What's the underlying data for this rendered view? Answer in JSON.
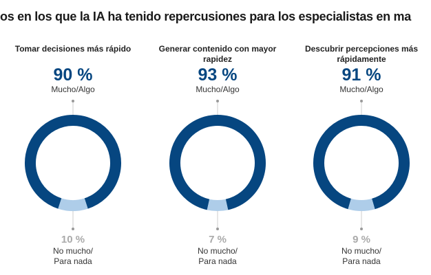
{
  "chart_data": {
    "type": "pie",
    "title": "os en los que la IA ha tenido repercusiones para los especialistas en ma",
    "colors": {
      "high": "#064680",
      "low": "#aecde9"
    },
    "items": [
      {
        "category": "Tomar decisiones más rápido",
        "high_value": 90,
        "high_label": "90 %",
        "high_text": "Mucho/Algo",
        "low_value": 10,
        "low_label": "10 %",
        "low_text_1": "No mucho/",
        "low_text_2": "Para nada"
      },
      {
        "category": "Generar contenido con mayor rapidez",
        "high_value": 93,
        "high_label": "93 %",
        "high_text": "Mucho/Algo",
        "low_value": 7,
        "low_label": "7 %",
        "low_text_1": "No mucho/",
        "low_text_2": "Para nada"
      },
      {
        "category": "Descubrir percepciones más rápidamente",
        "high_value": 91,
        "high_label": "91 %",
        "high_text": "Mucho/Algo",
        "low_value": 9,
        "low_label": "9 %",
        "low_text_1": "No mucho/",
        "low_text_2": "Para nada"
      }
    ]
  }
}
